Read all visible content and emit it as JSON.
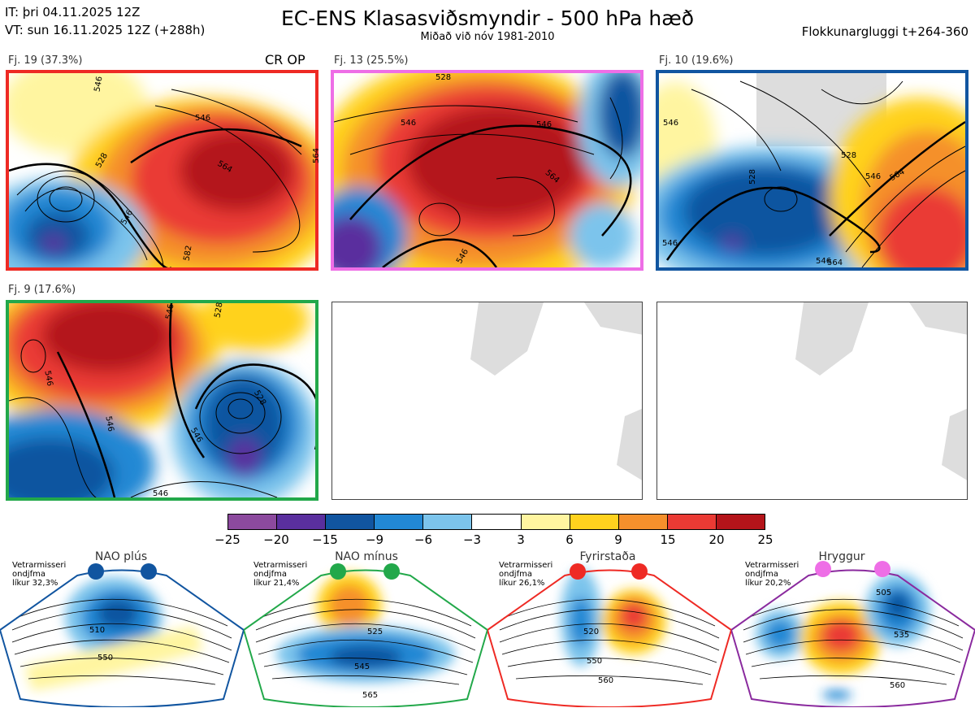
{
  "header": {
    "it": "IT: þri 04.11.2025 12Z",
    "vt": "VT: sun 16.11.2025 12Z  (+288h)",
    "title": "EC-ENS Klasasviðsmyndir - 500 hPa hæð",
    "subtitle": "Miðað við nóv 1981-2010",
    "window": "Flokkunargluggi t+264-360"
  },
  "panels": [
    {
      "label": "Fj. 19 (37.3%)",
      "border": "#ee2a24",
      "extra": "CR OP"
    },
    {
      "label": "Fj. 13 (25.5%)",
      "border": "#ee6ee6"
    },
    {
      "label": "Fj. 10 (19.6%)",
      "border": "#1155a0"
    },
    {
      "label": "Fj. 9 (17.6%)",
      "border": "#22a84a"
    }
  ],
  "contour_labels": [
    "546",
    "528",
    "564",
    "546",
    "546",
    "582",
    "528",
    "546",
    "564",
    "546",
    "546",
    "528",
    "564",
    "546",
    "546",
    "528",
    "546",
    "564",
    "546",
    "546",
    "528",
    "546",
    "528",
    "546",
    "546",
    "546",
    "564"
  ],
  "colorbar": {
    "colors": [
      "#8c4a9e",
      "#5a2f9e",
      "#1155a0",
      "#2288d4",
      "#7cc4ec",
      "#ffffff",
      "#fff5a0",
      "#ffd21e",
      "#f5902c",
      "#ea3a34",
      "#b4141a"
    ],
    "ticks": [
      "−25",
      "−20",
      "−15",
      "−9",
      "−6",
      "−3",
      "3",
      "6",
      "9",
      "15",
      "20",
      "25"
    ]
  },
  "regimes": [
    {
      "name": "NAO plús",
      "line1": "Vetrarmisseri",
      "line2": "ondjfma",
      "line3": "líkur 32,3%",
      "color": "#1155a0",
      "labels": [
        "510",
        "550"
      ]
    },
    {
      "name": "NAO mínus",
      "line1": "Vetrarmisseri",
      "line2": "ondjfma",
      "line3": "líkur 21,4%",
      "color": "#22a84a",
      "labels": [
        "525",
        "545",
        "565"
      ]
    },
    {
      "name": "Fyrirstaða",
      "line1": "Vetrarmisseri",
      "line2": "ondjfma",
      "line3": "líkur 26,1%",
      "color": "#ee2a24",
      "labels": [
        "520",
        "550",
        "560"
      ]
    },
    {
      "name": "Hryggur",
      "line1": "Vetrarmisseri",
      "line2": "ondjfma",
      "line3": "líkur 20,2%",
      "color": "#ee6ee6",
      "labels": [
        "505",
        "535",
        "560"
      ]
    }
  ]
}
